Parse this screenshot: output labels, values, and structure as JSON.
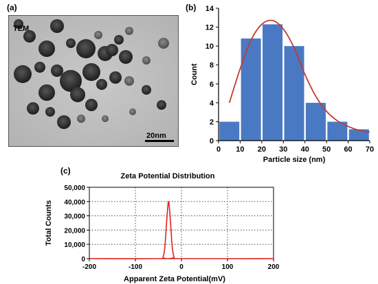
{
  "panels": {
    "a": "(a)",
    "b": "(b)",
    "c": "(c)"
  },
  "tem": {
    "label": "TEM",
    "scale_bar_label": "20nm"
  },
  "chart_data": [
    {
      "id": "histogram",
      "type": "bar",
      "x": [
        5,
        15,
        25,
        35,
        45,
        55,
        65
      ],
      "values": [
        2,
        10.8,
        12.3,
        10,
        4,
        2,
        1.2
      ],
      "fit_curve": {
        "x": [
          5,
          10,
          15,
          20,
          25,
          30,
          35,
          40,
          45,
          50,
          55,
          60,
          65,
          70
        ],
        "y": [
          4.0,
          7.6,
          10.6,
          12.3,
          12.7,
          11.8,
          9.8,
          7.0,
          4.7,
          3.1,
          2.1,
          1.5,
          1.1,
          0.9
        ]
      },
      "xlabel": "Particle size (nm)",
      "ylabel": "Count",
      "xlim": [
        0,
        70
      ],
      "ylim": [
        0,
        14
      ],
      "xticks": [
        0,
        10,
        20,
        30,
        40,
        50,
        60,
        70
      ],
      "yticks": [
        0,
        2,
        4,
        6,
        8,
        10,
        12,
        14
      ],
      "colors": {
        "bars": "#4a79c4",
        "fit": "#c23a34"
      }
    },
    {
      "id": "zeta",
      "type": "line",
      "title": "Zeta Potential Distribution",
      "xlabel": "Apparent Zeta Potential",
      "xlabel_unit": "(mV)",
      "ylabel": "Total Counts",
      "xlim": [
        -200,
        200
      ],
      "ylim": [
        0,
        50000
      ],
      "xticks": [
        "-200",
        "-100",
        "0",
        "100",
        "200"
      ],
      "yticks": [
        "0",
        "10,000",
        "20,000",
        "30,000",
        "40,000",
        "50,000"
      ],
      "series": [
        {
          "x": [
            -200,
            -45,
            -40,
            -36,
            -33,
            -30,
            -28,
            -26,
            -23,
            -20,
            -16,
            -12,
            200
          ],
          "y": [
            0,
            0,
            1000,
            8000,
            22000,
            35000,
            40000,
            35000,
            22000,
            8000,
            1000,
            0,
            0
          ]
        }
      ],
      "grid": true,
      "colors": {
        "line": "#e0201a"
      }
    }
  ]
}
